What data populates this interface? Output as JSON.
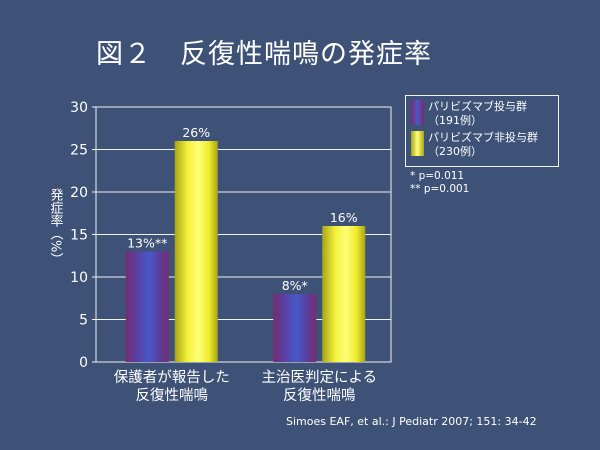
{
  "slide_title": "図２　反復性喘鳴の発症率",
  "legend": [
    {
      "label": "パリビズマブ投与群",
      "sublabel": "（191例）"
    },
    {
      "label": "パリビズマブ非投与群",
      "sublabel": "（230例）"
    }
  ],
  "notes": [
    "* p=0.011",
    "** p=0.001"
  ],
  "citation": "Simoes EAF, et al.: J Pediatr 2007; 151: 34-42",
  "chart_data": {
    "type": "bar",
    "title": "",
    "xlabel": "",
    "ylabel": "発症率（%）",
    "ylim": [
      0,
      30
    ],
    "yticks": [
      0,
      5,
      10,
      15,
      20,
      25,
      30
    ],
    "grid": true,
    "legend_position": "right",
    "categories": [
      [
        "保護者が報告した",
        "反復性喘鳴"
      ],
      [
        "主治医判定による",
        "反復性喘鳴"
      ]
    ],
    "series": [
      {
        "name": "パリビズマブ投与群",
        "values": [
          13,
          8
        ],
        "labels": [
          "13%**",
          "8%*"
        ],
        "color": "#5b3fa0"
      },
      {
        "name": "パリビズマブ非投与群",
        "values": [
          26,
          16
        ],
        "labels": [
          "26%",
          "16%"
        ],
        "color": "#e2df20"
      }
    ]
  }
}
